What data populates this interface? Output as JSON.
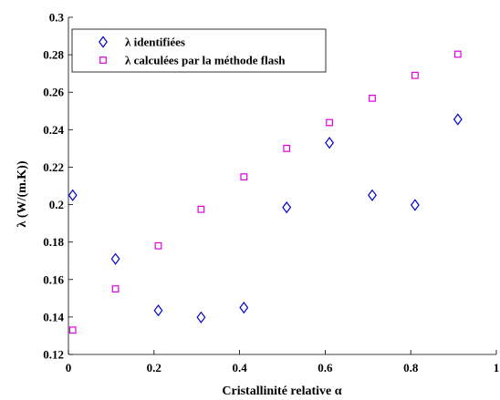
{
  "chart_data": {
    "type": "scatter",
    "xlabel": "Cristallinité relative α",
    "ylabel": "λ (W/(m.K))",
    "xlim": [
      0,
      1
    ],
    "ylim": [
      0.12,
      0.3
    ],
    "x_ticks": [
      0,
      0.2,
      0.4,
      0.6,
      0.8,
      1
    ],
    "x_tick_labels": [
      "0",
      "0.2",
      "0.4",
      "0.6",
      "0.8",
      "1"
    ],
    "y_ticks": [
      0.12,
      0.14,
      0.16,
      0.18,
      0.2,
      0.22,
      0.24,
      0.26,
      0.28,
      0.3
    ],
    "y_tick_labels": [
      "0.12",
      "0.14",
      "0.16",
      "0.18",
      "0.2",
      "0.22",
      "0.24",
      "0.26",
      "0.28",
      "0.3"
    ],
    "grid": false,
    "legend_position": "top-left",
    "series": [
      {
        "name": "λ identifiées",
        "marker": "diamond",
        "color": "#0000cc",
        "x": [
          0.01,
          0.11,
          0.21,
          0.31,
          0.41,
          0.51,
          0.61,
          0.71,
          0.81,
          0.91
        ],
        "y": [
          0.205,
          0.171,
          0.1435,
          0.1398,
          0.145,
          0.1985,
          0.233,
          0.205,
          0.1998,
          0.2455
        ]
      },
      {
        "name": "λ calculées par la méthode flash",
        "marker": "square",
        "color": "#e000e0",
        "x": [
          0.01,
          0.11,
          0.21,
          0.31,
          0.41,
          0.51,
          0.61,
          0.71,
          0.81,
          0.91
        ],
        "y": [
          0.133,
          0.155,
          0.178,
          0.1975,
          0.2148,
          0.23,
          0.2438,
          0.2568,
          0.269,
          0.2803
        ]
      }
    ]
  }
}
